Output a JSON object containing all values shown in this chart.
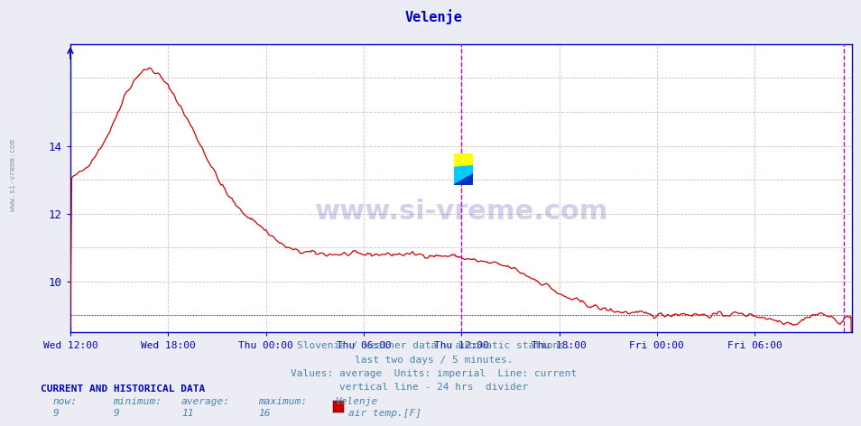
{
  "title": "Velenje",
  "title_color": "#0000cc",
  "background_color": "#ececf4",
  "plot_bg_color": "#ffffff",
  "line_color": "#cc0000",
  "avg_line_value": 9.0,
  "ylabel_left_color": "#0000aa",
  "axis_color": "#0000cc",
  "yticks": [
    10,
    12,
    14
  ],
  "ylim": [
    8.5,
    17.0
  ],
  "xlim": [
    0,
    576
  ],
  "xlabel_color": "#0000aa",
  "tick_labels": [
    "Wed 12:00",
    "Wed 18:00",
    "Thu 00:00",
    "Thu 06:00",
    "Thu 12:00",
    "Thu 18:00",
    "Fri 00:00",
    "Fri 06:00"
  ],
  "tick_positions": [
    0,
    72,
    144,
    216,
    288,
    360,
    432,
    504
  ],
  "vertical_line_24h": 288,
  "vertical_line_now": 570,
  "vertical_line_color": "#cc00cc",
  "subtitle_lines": [
    "Slovenia / weather data - automatic stations.",
    "last two days / 5 minutes.",
    "Values: average  Units: imperial  Line: current",
    "vertical line - 24 hrs  divider"
  ],
  "subtitle_color": "#4488aa",
  "footer_header": "CURRENT AND HISTORICAL DATA",
  "footer_header_color": "#0000cc",
  "footer_labels": [
    "now:",
    "minimum:",
    "average:",
    "maximum:",
    "Velenje"
  ],
  "footer_values": [
    "9",
    "9",
    "11",
    "16"
  ],
  "footer_color": "#4488aa",
  "legend_label": "air temp.[F]",
  "legend_color": "#cc0000",
  "watermark": "www.si-vreme.com",
  "side_text": "www.si-vreme.com",
  "side_text_color": "#8899aa",
  "grid_h_color": "#ddbbbb",
  "grid_v_color": "#ddbbbb"
}
